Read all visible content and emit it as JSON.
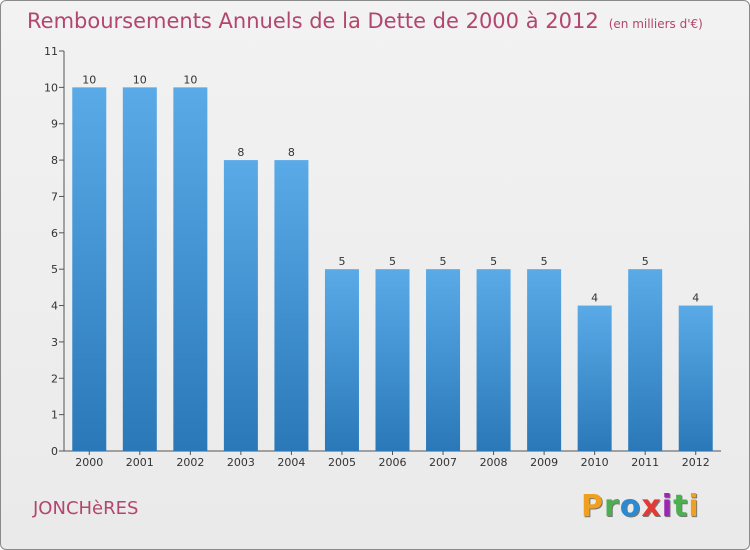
{
  "title": "Remboursements Annuels de la Dette de 2000 à 2012",
  "unit": "(en milliers d'€)",
  "commune": "JONCHèRES",
  "logo": {
    "letters": [
      "P",
      "r",
      "o",
      "x",
      "i",
      "t",
      "i"
    ],
    "colors": [
      "#f0a020",
      "#4caf50",
      "#2c8ad1",
      "#e53935",
      "#9c27b0",
      "#4caf50",
      "#f0a020"
    ]
  },
  "colors": {
    "title": "#b3466e",
    "bar_top": "#5aaae8",
    "bar_bottom": "#2a78b8",
    "axis": "#555555"
  },
  "chart_data": {
    "type": "bar",
    "title": "Remboursements Annuels de la Dette de 2000 à 2012",
    "xlabel": "",
    "ylabel": "",
    "ylim": [
      0,
      11
    ],
    "yticks": [
      0,
      1,
      2,
      3,
      4,
      5,
      6,
      7,
      8,
      9,
      10,
      11
    ],
    "grid": false,
    "categories": [
      "2000",
      "2001",
      "2002",
      "2003",
      "2004",
      "2005",
      "2006",
      "2007",
      "2008",
      "2009",
      "2010",
      "2011",
      "2012"
    ],
    "values": [
      10,
      10,
      10,
      8,
      8,
      5,
      5,
      5,
      5,
      5,
      4,
      5,
      4
    ]
  }
}
